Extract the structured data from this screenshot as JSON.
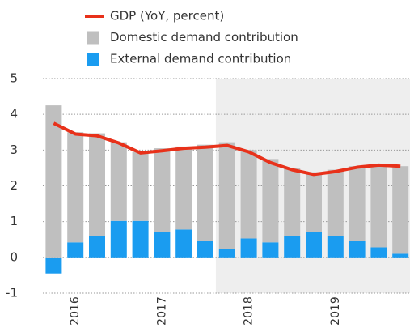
{
  "chart_data": {
    "type": "bar",
    "categories": [
      null,
      "2016",
      null,
      null,
      null,
      "2017",
      null,
      null,
      null,
      "2018",
      null,
      null,
      null,
      "2019",
      null,
      null,
      null
    ],
    "series": [
      {
        "name": "GDP (YoY, percent)",
        "color": "#e8311a",
        "type": "line",
        "values": [
          3.75,
          3.45,
          3.4,
          3.2,
          2.92,
          2.98,
          3.05,
          3.08,
          3.13,
          2.95,
          2.65,
          2.45,
          2.32,
          2.4,
          2.52,
          2.58,
          2.55
        ]
      },
      {
        "name": "Domestic demand contribution",
        "color": "#bfbfbf",
        "type": "bar",
        "values": [
          4.25,
          3.08,
          2.87,
          2.2,
          1.93,
          2.33,
          2.32,
          2.68,
          2.99,
          2.47,
          2.33,
          1.9,
          1.66,
          1.85,
          2.08,
          2.32,
          2.45
        ]
      },
      {
        "name": "External demand contribution",
        "color": "#1a9cf0",
        "type": "bar",
        "values": [
          -0.45,
          0.42,
          0.6,
          1.02,
          1.02,
          0.72,
          0.78,
          0.47,
          0.23,
          0.53,
          0.42,
          0.6,
          0.72,
          0.6,
          0.47,
          0.28,
          0.1
        ]
      }
    ],
    "ylim": [
      -1,
      5
    ],
    "yticks": [
      -1,
      0,
      1,
      2,
      3,
      4,
      5
    ],
    "grid": true
  }
}
